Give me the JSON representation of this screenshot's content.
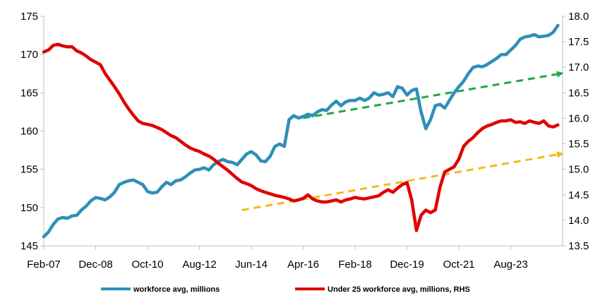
{
  "chart_data": {
    "type": "line",
    "title": "",
    "xlabel": "",
    "ylabel": "",
    "x_tick_labels": [
      "Feb-07",
      "Dec-08",
      "Oct-10",
      "Aug-12",
      "Jun-14",
      "Apr-16",
      "Feb-18",
      "Dec-19",
      "Oct-21",
      "Aug-23"
    ],
    "x_tick_dates": [
      "2007-02",
      "2008-12",
      "2010-10",
      "2012-08",
      "2014-06",
      "2016-04",
      "2018-02",
      "2019-12",
      "2021-10",
      "2023-08"
    ],
    "ylim_left": [
      145,
      175
    ],
    "yticks_left": [
      "145",
      "150",
      "155",
      "160",
      "165",
      "170",
      "175"
    ],
    "ylim_right": [
      13.5,
      18.0
    ],
    "yticks_right": [
      "13.5",
      "14.0",
      "14.5",
      "15.0",
      "15.5",
      "16.0",
      "16.5",
      "17.0",
      "17.5",
      "18.0"
    ],
    "grid": false,
    "legend_position": "bottom",
    "colors": {
      "workforce": "#2E8FB8",
      "under25": "#E00000",
      "trend_workforce": "#1FA84A",
      "trend_under25": "#F5B915"
    },
    "series": [
      {
        "name": "workforce avg, millions",
        "axis": "left",
        "points": [
          [
            "2007-02",
            146.2
          ],
          [
            "2007-04",
            146.8
          ],
          [
            "2007-06",
            147.8
          ],
          [
            "2007-08",
            148.5
          ],
          [
            "2007-10",
            148.7
          ],
          [
            "2007-12",
            148.6
          ],
          [
            "2008-02",
            148.9
          ],
          [
            "2008-04",
            149.0
          ],
          [
            "2008-06",
            149.7
          ],
          [
            "2008-08",
            150.2
          ],
          [
            "2008-10",
            150.9
          ],
          [
            "2008-12",
            151.3
          ],
          [
            "2009-02",
            151.2
          ],
          [
            "2009-04",
            151.0
          ],
          [
            "2009-06",
            151.4
          ],
          [
            "2009-08",
            152.0
          ],
          [
            "2009-10",
            153.0
          ],
          [
            "2009-12",
            153.3
          ],
          [
            "2010-02",
            153.5
          ],
          [
            "2010-04",
            153.6
          ],
          [
            "2010-06",
            153.3
          ],
          [
            "2010-08",
            153.0
          ],
          [
            "2010-10",
            152.1
          ],
          [
            "2010-12",
            151.9
          ],
          [
            "2011-02",
            152.0
          ],
          [
            "2011-04",
            152.7
          ],
          [
            "2011-06",
            153.3
          ],
          [
            "2011-08",
            153.0
          ],
          [
            "2011-10",
            153.5
          ],
          [
            "2011-12",
            153.6
          ],
          [
            "2012-02",
            154.0
          ],
          [
            "2012-04",
            154.5
          ],
          [
            "2012-06",
            154.9
          ],
          [
            "2012-08",
            155.0
          ],
          [
            "2012-10",
            155.2
          ],
          [
            "2012-12",
            154.9
          ],
          [
            "2013-02",
            155.6
          ],
          [
            "2013-04",
            156.0
          ],
          [
            "2013-06",
            156.3
          ],
          [
            "2013-08",
            156.0
          ],
          [
            "2013-10",
            155.9
          ],
          [
            "2013-12",
            155.6
          ],
          [
            "2014-02",
            156.3
          ],
          [
            "2014-04",
            157.0
          ],
          [
            "2014-06",
            157.3
          ],
          [
            "2014-08",
            156.9
          ],
          [
            "2014-10",
            156.1
          ],
          [
            "2014-12",
            156.0
          ],
          [
            "2015-02",
            156.7
          ],
          [
            "2015-04",
            158.0
          ],
          [
            "2015-06",
            158.3
          ],
          [
            "2015-08",
            158.0
          ],
          [
            "2015-10",
            161.5
          ],
          [
            "2015-12",
            162.0
          ],
          [
            "2016-02",
            161.7
          ],
          [
            "2016-04",
            161.9
          ],
          [
            "2016-06",
            162.2
          ],
          [
            "2016-08",
            162.0
          ],
          [
            "2016-10",
            162.5
          ],
          [
            "2016-12",
            162.8
          ],
          [
            "2017-02",
            162.7
          ],
          [
            "2017-04",
            163.4
          ],
          [
            "2017-06",
            163.9
          ],
          [
            "2017-08",
            163.3
          ],
          [
            "2017-10",
            163.8
          ],
          [
            "2017-12",
            164.0
          ],
          [
            "2018-02",
            164.0
          ],
          [
            "2018-04",
            164.3
          ],
          [
            "2018-06",
            164.0
          ],
          [
            "2018-08",
            164.3
          ],
          [
            "2018-10",
            165.0
          ],
          [
            "2018-12",
            164.7
          ],
          [
            "2019-02",
            164.8
          ],
          [
            "2019-04",
            165.0
          ],
          [
            "2019-06",
            164.5
          ],
          [
            "2019-08",
            165.8
          ],
          [
            "2019-10",
            165.6
          ],
          [
            "2019-12",
            164.7
          ],
          [
            "2020-02",
            165.3
          ],
          [
            "2020-04",
            165.5
          ],
          [
            "2020-06",
            162.5
          ],
          [
            "2020-08",
            160.3
          ],
          [
            "2020-10",
            161.5
          ],
          [
            "2020-12",
            163.3
          ],
          [
            "2021-02",
            163.5
          ],
          [
            "2021-04",
            163.0
          ],
          [
            "2021-06",
            164.0
          ],
          [
            "2021-08",
            165.0
          ],
          [
            "2021-10",
            165.8
          ],
          [
            "2021-12",
            166.5
          ],
          [
            "2022-02",
            167.5
          ],
          [
            "2022-04",
            168.3
          ],
          [
            "2022-06",
            168.5
          ],
          [
            "2022-08",
            168.4
          ],
          [
            "2022-10",
            168.7
          ],
          [
            "2022-12",
            169.1
          ],
          [
            "2023-02",
            169.5
          ],
          [
            "2023-04",
            170.0
          ],
          [
            "2023-06",
            170.0
          ],
          [
            "2023-08",
            170.6
          ],
          [
            "2023-10",
            171.2
          ],
          [
            "2023-12",
            172.0
          ],
          [
            "2024-02",
            172.3
          ],
          [
            "2024-04",
            172.4
          ],
          [
            "2024-06",
            172.6
          ],
          [
            "2024-08",
            172.3
          ],
          [
            "2024-10",
            172.4
          ],
          [
            "2024-12",
            172.5
          ],
          [
            "2025-02",
            172.9
          ],
          [
            "2025-04",
            173.8
          ]
        ]
      },
      {
        "name": "Under 25 workforce avg, millions, RHS",
        "axis": "right",
        "points": [
          [
            "2007-02",
            17.3
          ],
          [
            "2007-04",
            17.34
          ],
          [
            "2007-06",
            17.43
          ],
          [
            "2007-08",
            17.45
          ],
          [
            "2007-10",
            17.42
          ],
          [
            "2007-12",
            17.4
          ],
          [
            "2008-02",
            17.4
          ],
          [
            "2008-04",
            17.32
          ],
          [
            "2008-06",
            17.28
          ],
          [
            "2008-08",
            17.22
          ],
          [
            "2008-10",
            17.15
          ],
          [
            "2008-12",
            17.1
          ],
          [
            "2009-02",
            17.05
          ],
          [
            "2009-04",
            16.88
          ],
          [
            "2009-06",
            16.75
          ],
          [
            "2009-08",
            16.62
          ],
          [
            "2009-10",
            16.48
          ],
          [
            "2009-12",
            16.32
          ],
          [
            "2010-02",
            16.18
          ],
          [
            "2010-04",
            16.06
          ],
          [
            "2010-06",
            15.95
          ],
          [
            "2010-08",
            15.9
          ],
          [
            "2010-10",
            15.88
          ],
          [
            "2010-12",
            15.86
          ],
          [
            "2011-02",
            15.82
          ],
          [
            "2011-04",
            15.78
          ],
          [
            "2011-06",
            15.72
          ],
          [
            "2011-08",
            15.66
          ],
          [
            "2011-10",
            15.62
          ],
          [
            "2011-12",
            15.55
          ],
          [
            "2012-02",
            15.48
          ],
          [
            "2012-04",
            15.42
          ],
          [
            "2012-06",
            15.38
          ],
          [
            "2012-08",
            15.35
          ],
          [
            "2012-10",
            15.3
          ],
          [
            "2012-12",
            15.26
          ],
          [
            "2013-02",
            15.2
          ],
          [
            "2013-04",
            15.12
          ],
          [
            "2013-06",
            15.05
          ],
          [
            "2013-08",
            14.98
          ],
          [
            "2013-10",
            14.9
          ],
          [
            "2013-12",
            14.82
          ],
          [
            "2014-02",
            14.75
          ],
          [
            "2014-04",
            14.72
          ],
          [
            "2014-06",
            14.68
          ],
          [
            "2014-08",
            14.62
          ],
          [
            "2014-10",
            14.58
          ],
          [
            "2014-12",
            14.55
          ],
          [
            "2015-02",
            14.52
          ],
          [
            "2015-04",
            14.49
          ],
          [
            "2015-06",
            14.47
          ],
          [
            "2015-08",
            14.45
          ],
          [
            "2015-10",
            14.42
          ],
          [
            "2015-12",
            14.38
          ],
          [
            "2016-02",
            14.4
          ],
          [
            "2016-04",
            14.43
          ],
          [
            "2016-06",
            14.5
          ],
          [
            "2016-08",
            14.42
          ],
          [
            "2016-10",
            14.38
          ],
          [
            "2016-12",
            14.36
          ],
          [
            "2017-02",
            14.36
          ],
          [
            "2017-04",
            14.38
          ],
          [
            "2017-06",
            14.4
          ],
          [
            "2017-08",
            14.36
          ],
          [
            "2017-10",
            14.4
          ],
          [
            "2017-12",
            14.42
          ],
          [
            "2018-02",
            14.45
          ],
          [
            "2018-04",
            14.43
          ],
          [
            "2018-06",
            14.42
          ],
          [
            "2018-08",
            14.44
          ],
          [
            "2018-10",
            14.46
          ],
          [
            "2018-12",
            14.48
          ],
          [
            "2019-02",
            14.55
          ],
          [
            "2019-04",
            14.6
          ],
          [
            "2019-06",
            14.55
          ],
          [
            "2019-08",
            14.63
          ],
          [
            "2019-10",
            14.7
          ],
          [
            "2019-12",
            14.74
          ],
          [
            "2020-02",
            14.4
          ],
          [
            "2020-04",
            13.8
          ],
          [
            "2020-06",
            14.1
          ],
          [
            "2020-08",
            14.2
          ],
          [
            "2020-10",
            14.15
          ],
          [
            "2020-12",
            14.2
          ],
          [
            "2021-02",
            14.65
          ],
          [
            "2021-04",
            14.95
          ],
          [
            "2021-06",
            15.0
          ],
          [
            "2021-08",
            15.05
          ],
          [
            "2021-10",
            15.2
          ],
          [
            "2021-12",
            15.45
          ],
          [
            "2022-02",
            15.55
          ],
          [
            "2022-04",
            15.62
          ],
          [
            "2022-06",
            15.72
          ],
          [
            "2022-08",
            15.8
          ],
          [
            "2022-10",
            15.85
          ],
          [
            "2022-12",
            15.88
          ],
          [
            "2023-02",
            15.92
          ],
          [
            "2023-04",
            15.95
          ],
          [
            "2023-06",
            15.95
          ],
          [
            "2023-08",
            15.97
          ],
          [
            "2023-10",
            15.92
          ],
          [
            "2023-12",
            15.93
          ],
          [
            "2024-02",
            15.9
          ],
          [
            "2024-04",
            15.95
          ],
          [
            "2024-06",
            15.92
          ],
          [
            "2024-08",
            15.9
          ],
          [
            "2024-10",
            15.95
          ],
          [
            "2024-12",
            15.85
          ],
          [
            "2025-02",
            15.83
          ],
          [
            "2025-04",
            15.87
          ]
        ]
      }
    ],
    "trend_lines": [
      {
        "axis": "left",
        "style": "dashed-arrow",
        "color": "#1FA84A",
        "start": [
          "2016-04",
          161.7
        ],
        "end": [
          "2025-05",
          167.5
        ]
      },
      {
        "axis": "right",
        "style": "dashed-arrow",
        "color": "#F5B915",
        "start": [
          "2014-02",
          14.2
        ],
        "end": [
          "2025-05",
          15.3
        ]
      }
    ]
  }
}
